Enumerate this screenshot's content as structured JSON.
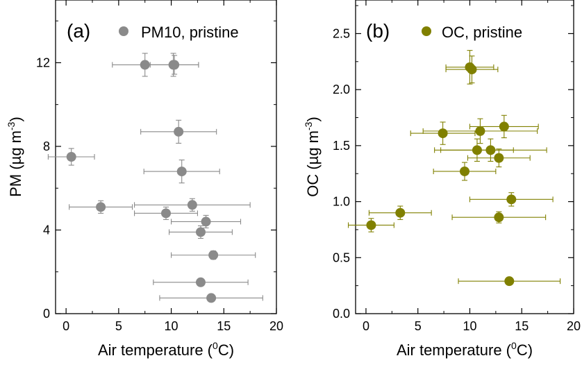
{
  "chart_data": [
    {
      "type": "scatter",
      "panel_label": "(a)",
      "legend_label": "PM10, pristine",
      "color": "#8a8a8a",
      "xlabel": {
        "prefix": "Air temperature (",
        "sup": "0",
        "suffix": "C)"
      },
      "ylabel": {
        "prefix": "PM (µg m",
        "sup": "-3",
        "suffix": ")"
      },
      "xlim": [
        -1,
        20
      ],
      "ylim": [
        0,
        15
      ],
      "xticks": [
        0,
        5,
        10,
        15,
        20
      ],
      "xtick_labels": [
        "0",
        "5",
        "10",
        "15",
        "20"
      ],
      "yticks": [
        0,
        4,
        8,
        12
      ],
      "ytick_labels": [
        "0",
        "4",
        "8",
        "12"
      ],
      "points": [
        {
          "x": 7.5,
          "y": 11.9,
          "xerr": 3.1,
          "yerr": 0.55
        },
        {
          "x": 10.2,
          "y": 11.9,
          "xerr": 2.4,
          "yerr": 0.55
        },
        {
          "x": 10.3,
          "y": 11.9,
          "xerr": 2.3,
          "yerr": 0.45
        },
        {
          "x": 10.7,
          "y": 8.7,
          "xerr": 3.6,
          "yerr": 0.55
        },
        {
          "x": 0.5,
          "y": 7.5,
          "xerr": 2.2,
          "yerr": 0.4
        },
        {
          "x": 11.0,
          "y": 6.8,
          "xerr": 3.6,
          "yerr": 0.55
        },
        {
          "x": 3.3,
          "y": 5.1,
          "xerr": 3.0,
          "yerr": 0.3
        },
        {
          "x": 12.0,
          "y": 5.2,
          "xerr": 5.5,
          "yerr": 0.3
        },
        {
          "x": 9.5,
          "y": 4.8,
          "xerr": 3.0,
          "yerr": 0.3
        },
        {
          "x": 13.3,
          "y": 4.4,
          "xerr": 3.3,
          "yerr": 0.3
        },
        {
          "x": 12.8,
          "y": 3.9,
          "xerr": 3.0,
          "yerr": 0.3
        },
        {
          "x": 14.0,
          "y": 2.8,
          "xerr": 4.0,
          "yerr": 0.2
        },
        {
          "x": 12.8,
          "y": 1.5,
          "xerr": 4.5,
          "yerr": 0.15
        },
        {
          "x": 13.8,
          "y": 0.75,
          "xerr": 4.9,
          "yerr": 0.1
        }
      ]
    },
    {
      "type": "scatter",
      "panel_label": "(b)",
      "legend_label": "OC, pristine",
      "color": "#808000",
      "xlabel": {
        "prefix": "Air temperature (",
        "sup": "0",
        "suffix": "C)"
      },
      "ylabel": {
        "prefix": "OC (µg m",
        "sup": "-3",
        "suffix": ")"
      },
      "xlim": [
        -1,
        20
      ],
      "ylim": [
        0,
        2.8
      ],
      "xticks": [
        0,
        5,
        10,
        15,
        20
      ],
      "xtick_labels": [
        "0",
        "5",
        "10",
        "15",
        "20"
      ],
      "yticks": [
        0,
        0.5,
        1.0,
        1.5,
        2.0,
        2.5
      ],
      "ytick_labels": [
        "0.0",
        "0.5",
        "1.0",
        "1.5",
        "2.0",
        "2.5"
      ],
      "points": [
        {
          "x": 10.0,
          "y": 2.2,
          "xerr": 2.3,
          "yerr": 0.15
        },
        {
          "x": 10.2,
          "y": 2.18,
          "xerr": 2.5,
          "yerr": 0.12
        },
        {
          "x": 7.4,
          "y": 1.61,
          "xerr": 3.1,
          "yerr": 0.1
        },
        {
          "x": 11.0,
          "y": 1.63,
          "xerr": 5.5,
          "yerr": 0.11
        },
        {
          "x": 13.3,
          "y": 1.67,
          "xerr": 3.3,
          "yerr": 0.1
        },
        {
          "x": 10.7,
          "y": 1.46,
          "xerr": 3.5,
          "yerr": 0.1
        },
        {
          "x": 12.0,
          "y": 1.46,
          "xerr": 5.4,
          "yerr": 0.1
        },
        {
          "x": 12.8,
          "y": 1.39,
          "xerr": 3.0,
          "yerr": 0.08
        },
        {
          "x": 9.5,
          "y": 1.27,
          "xerr": 3.0,
          "yerr": 0.08
        },
        {
          "x": 14.0,
          "y": 1.02,
          "xerr": 4.0,
          "yerr": 0.06
        },
        {
          "x": 3.3,
          "y": 0.9,
          "xerr": 3.0,
          "yerr": 0.06
        },
        {
          "x": 12.8,
          "y": 0.86,
          "xerr": 4.5,
          "yerr": 0.05
        },
        {
          "x": 0.5,
          "y": 0.79,
          "xerr": 2.2,
          "yerr": 0.06
        },
        {
          "x": 13.8,
          "y": 0.29,
          "xerr": 4.9,
          "yerr": 0.03
        }
      ]
    }
  ]
}
